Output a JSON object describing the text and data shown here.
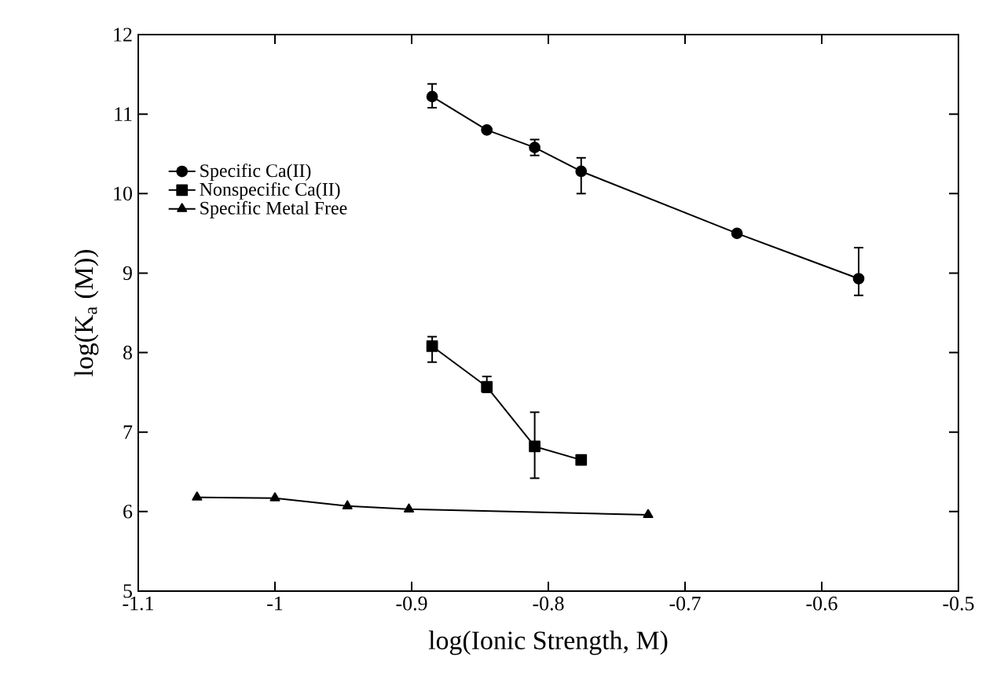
{
  "chart_data": {
    "type": "line",
    "xlabel": "log(Ionic Strength, M)",
    "ylabel": "log(K$_{a}$ (M))",
    "xlim": [
      -1.1,
      -0.5
    ],
    "ylim": [
      5,
      12
    ],
    "xticks": [
      -1.1,
      -1,
      -0.9,
      -0.8,
      -0.7,
      -0.6,
      -0.5
    ],
    "yticks": [
      5,
      6,
      7,
      8,
      9,
      10,
      11,
      12
    ],
    "grid": false,
    "legend": "left",
    "line_style": "solid",
    "series": [
      {
        "name": "Specific Ca(II)",
        "color": "#000000",
        "marker": "circle",
        "x": [
          -0.885,
          -0.845,
          -0.81,
          -0.776,
          -0.662,
          -0.573
        ],
        "values": [
          11.22,
          10.8,
          10.58,
          10.28,
          9.5,
          8.93
        ],
        "errors": [
          [
            11.08,
            11.38
          ],
          null,
          [
            10.48,
            10.68
          ],
          [
            10.0,
            10.45
          ],
          null,
          [
            8.72,
            9.32
          ]
        ]
      },
      {
        "name": "Nonspecific Ca(II)",
        "color": "#000000",
        "marker": "square",
        "x": [
          -0.885,
          -0.845,
          -0.81,
          -0.776
        ],
        "values": [
          8.08,
          7.57,
          6.82,
          6.65
        ],
        "errors": [
          [
            7.88,
            8.2
          ],
          [
            7.5,
            7.7
          ],
          [
            6.42,
            7.25
          ],
          [
            6.6,
            6.7
          ]
        ]
      },
      {
        "name": "Specific Metal Free",
        "color": "#000000",
        "marker": "triangle",
        "x": [
          -1.057,
          -1.0,
          -0.947,
          -0.902,
          -0.727
        ],
        "values": [
          6.18,
          6.17,
          6.07,
          6.03,
          5.96
        ]
      }
    ]
  }
}
